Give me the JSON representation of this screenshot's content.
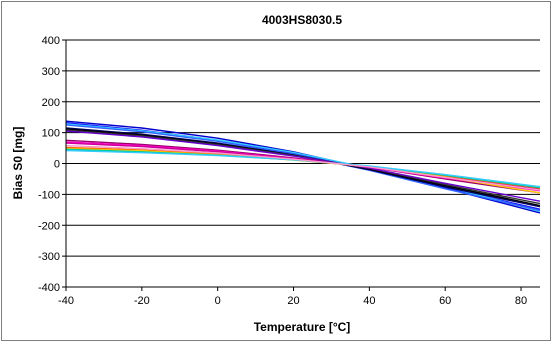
{
  "chart_data": {
    "type": "line",
    "title": "4003HS8030.5",
    "xlabel": "Temperature [°C]",
    "ylabel": "Bias S0 [mg]",
    "xlim": [
      -40,
      85
    ],
    "ylim": [
      -400,
      400
    ],
    "x_ticks": [
      -40,
      -20,
      0,
      20,
      40,
      60,
      80
    ],
    "y_ticks": [
      400,
      300,
      200,
      100,
      0,
      -100,
      -200,
      -300,
      -400
    ],
    "grid": "horizontal major gridlines",
    "legend": "none",
    "series": [
      {
        "color": "#0000cc",
        "x": [
          -40,
          -20,
          0,
          20,
          40,
          60,
          85
        ],
        "values": [
          137,
          115,
          82,
          38,
          -18,
          -80,
          -160
        ]
      },
      {
        "color": "#1a1aff",
        "x": [
          -40,
          -20,
          0,
          20,
          40,
          60,
          85
        ],
        "values": [
          132,
          108,
          75,
          32,
          -20,
          -78,
          -148
        ]
      },
      {
        "color": "#33ccff",
        "x": [
          -40,
          -20,
          0,
          20,
          40,
          60,
          85
        ],
        "values": [
          128,
          106,
          76,
          36,
          -15,
          -74,
          -155
        ]
      },
      {
        "color": "#3366ff",
        "x": [
          -40,
          -20,
          0,
          20,
          40,
          60,
          85
        ],
        "values": [
          125,
          103,
          72,
          30,
          -22,
          -82,
          -152
        ]
      },
      {
        "color": "#000066",
        "x": [
          -40,
          -20,
          0,
          20,
          40,
          60,
          85
        ],
        "values": [
          115,
          95,
          66,
          28,
          -20,
          -76,
          -140
        ]
      },
      {
        "color": "#000000",
        "x": [
          -40,
          -20,
          0,
          20,
          40,
          60,
          85
        ],
        "values": [
          112,
          92,
          63,
          27,
          -18,
          -72,
          -136
        ]
      },
      {
        "color": "#333333",
        "x": [
          -40,
          -20,
          0,
          20,
          40,
          60,
          85
        ],
        "values": [
          108,
          89,
          61,
          26,
          -16,
          -68,
          -130
        ]
      },
      {
        "color": "#6600cc",
        "x": [
          -40,
          -20,
          0,
          20,
          40,
          60,
          85
        ],
        "values": [
          105,
          86,
          58,
          24,
          -15,
          -64,
          -122
        ]
      },
      {
        "color": "#990066",
        "x": [
          -40,
          -20,
          0,
          20,
          40,
          60,
          85
        ],
        "values": [
          75,
          62,
          43,
          18,
          -12,
          -50,
          -95
        ]
      },
      {
        "color": "#ff00cc",
        "x": [
          -40,
          -20,
          0,
          20,
          40,
          60,
          85
        ],
        "values": [
          70,
          58,
          40,
          16,
          -12,
          -47,
          -88
        ]
      },
      {
        "color": "#cc0099",
        "x": [
          -40,
          -20,
          0,
          20,
          40,
          60,
          85
        ],
        "values": [
          66,
          55,
          38,
          15,
          -11,
          -44,
          -82
        ]
      },
      {
        "color": "#ff6600",
        "x": [
          -40,
          -20,
          0,
          20,
          40,
          60,
          85
        ],
        "values": [
          52,
          44,
          30,
          12,
          -10,
          -40,
          -80
        ]
      },
      {
        "color": "#ffcc00",
        "x": [
          -40,
          -20,
          0,
          20,
          40,
          60,
          85
        ],
        "values": [
          48,
          41,
          28,
          11,
          -10,
          -44,
          -95
        ]
      },
      {
        "color": "#00cc99",
        "x": [
          -40,
          -20,
          0,
          20,
          40,
          60,
          85
        ],
        "values": [
          46,
          38,
          27,
          12,
          -9,
          -38,
          -78
        ]
      },
      {
        "color": "#33ccff",
        "x": [
          -40,
          -20,
          0,
          20,
          40,
          60,
          85
        ],
        "values": [
          42,
          35,
          26,
          12,
          -8,
          -36,
          -75
        ]
      },
      {
        "color": "#ff99cc",
        "x": [
          -40,
          -20,
          0,
          20,
          40,
          60,
          85
        ],
        "values": [
          58,
          48,
          34,
          14,
          -11,
          -45,
          -86
        ]
      }
    ]
  }
}
